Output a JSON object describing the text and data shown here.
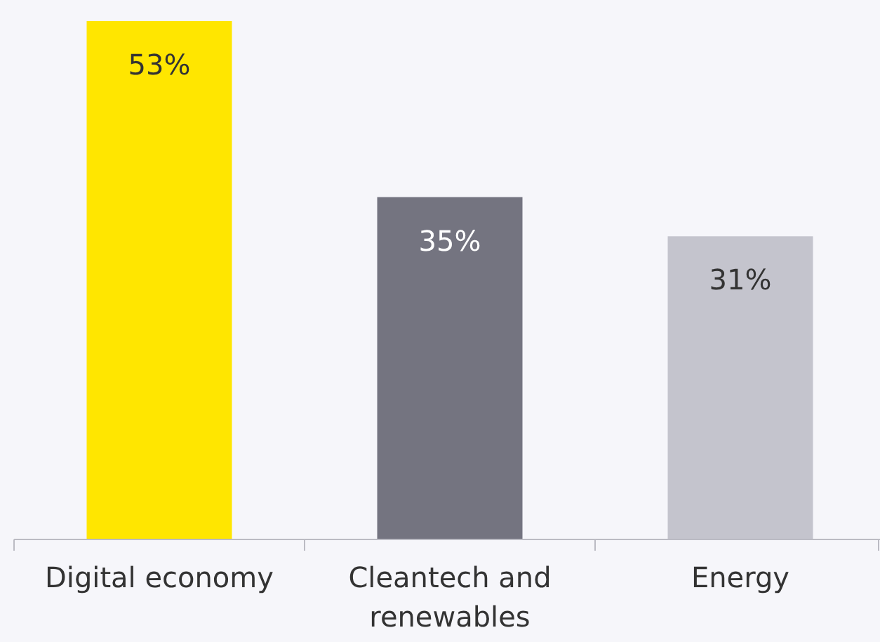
{
  "chart_data": {
    "type": "bar",
    "categories": [
      "Digital economy",
      "Cleantech and renewables",
      "Energy"
    ],
    "values": [
      53,
      35,
      31
    ],
    "colors": [
      "#ffe600",
      "#747480",
      "#c4c4cd"
    ],
    "value_labels": [
      "53%",
      "35%",
      "31%"
    ]
  }
}
